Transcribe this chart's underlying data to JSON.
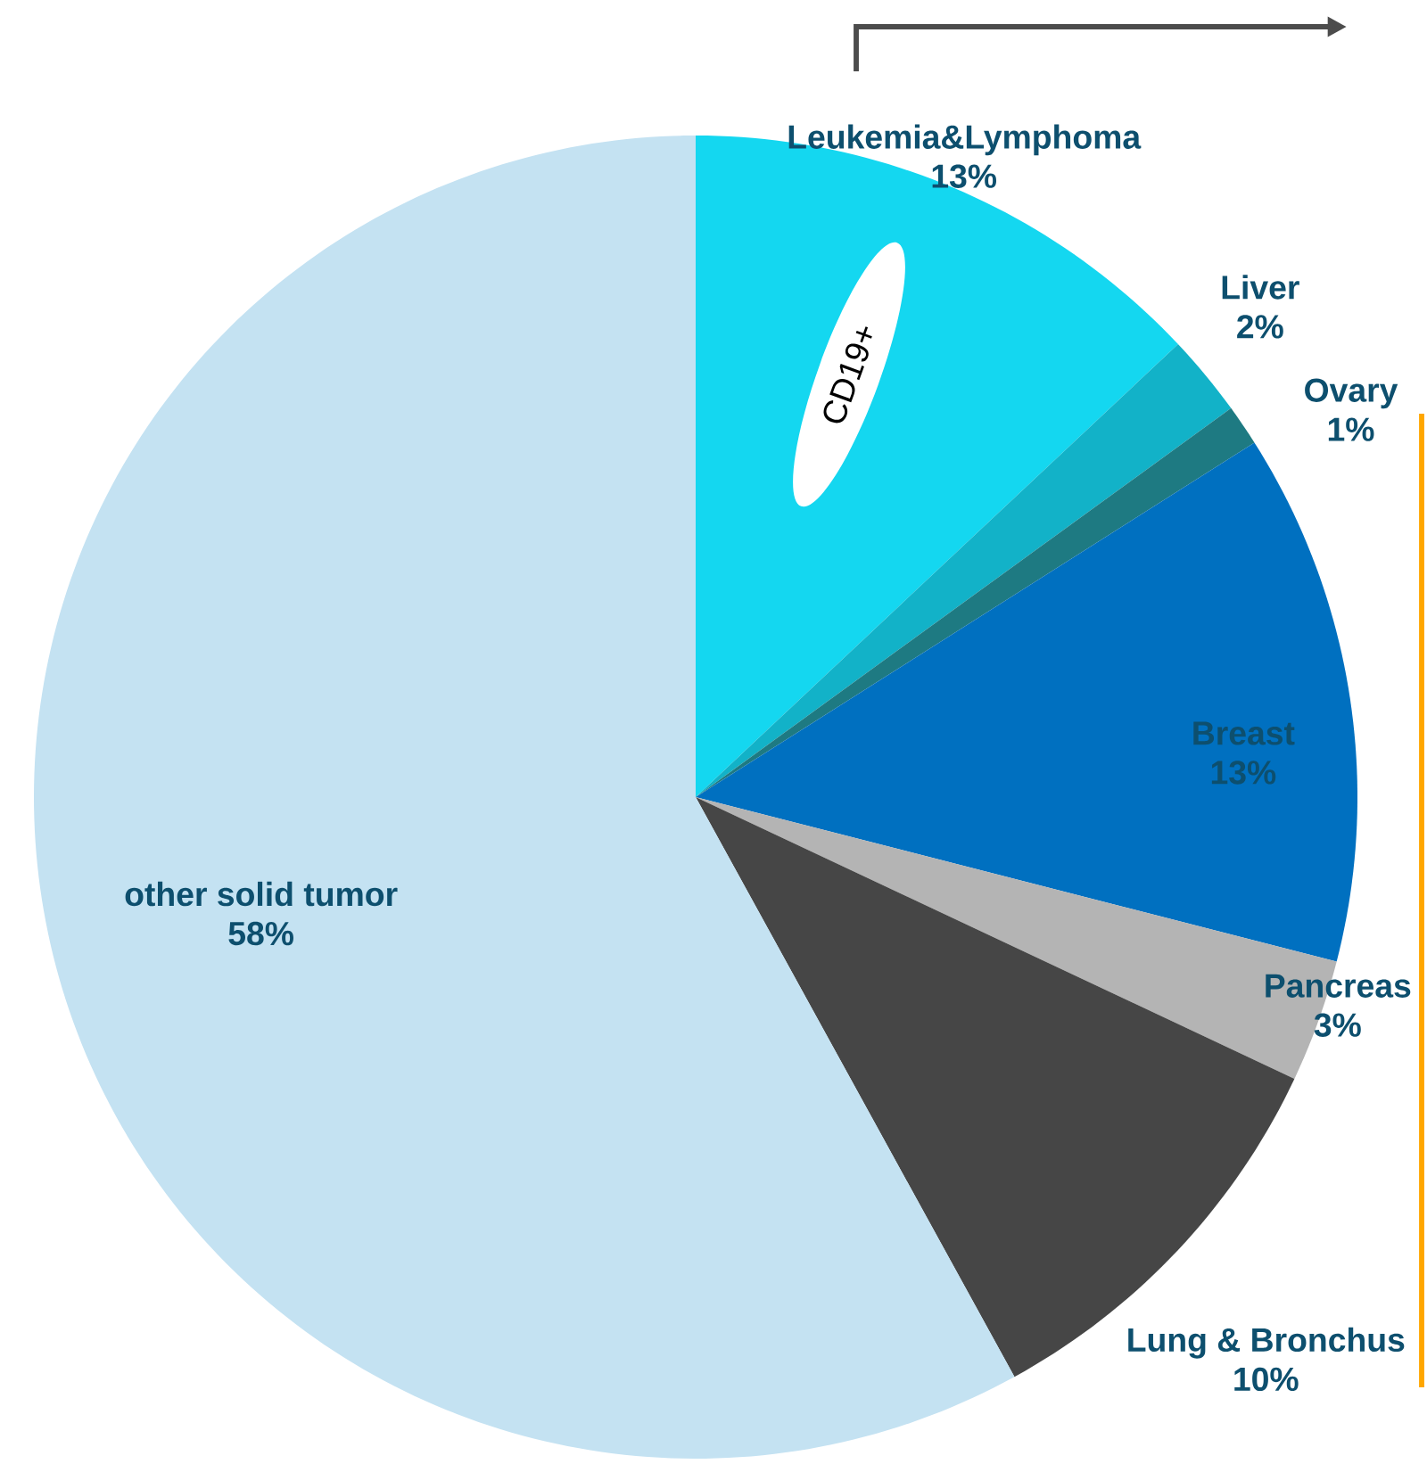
{
  "chart_data": {
    "type": "pie",
    "categories": [
      "Leukemia&Lymphoma",
      "Liver",
      "Ovary",
      "Breast",
      "Pancreas",
      "Lung & Bronchus",
      "other solid tumor"
    ],
    "values": [
      13,
      2,
      1,
      13,
      3,
      10,
      58
    ],
    "value_labels": [
      "13%",
      "2%",
      "1%",
      "13%",
      "3%",
      "10%",
      "58%"
    ],
    "colors": [
      "#14d7f0",
      "#12b2c8",
      "#1e7a82",
      "#0070c0",
      "#b4b4b4",
      "#464646",
      "#c4e2f2"
    ],
    "annotations": [
      "CD19+"
    ]
  }
}
